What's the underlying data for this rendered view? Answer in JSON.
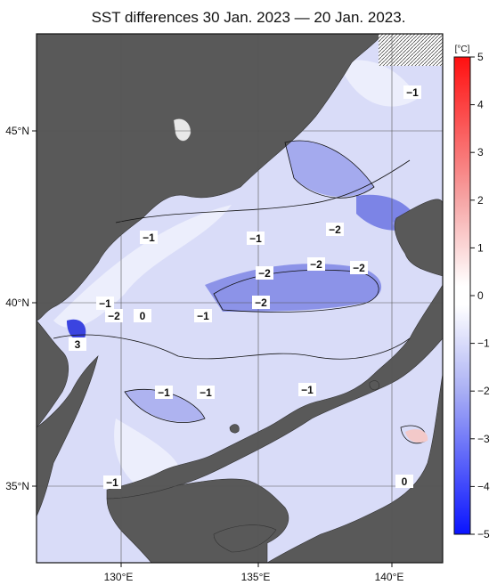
{
  "title": "SST differences 30 Jan. 2023 — 20 Jan. 2023.",
  "unit": "[°C]",
  "colorbar": {
    "ticks": [
      "5",
      "4",
      "3",
      "2",
      "1",
      "0",
      "−1",
      "−2",
      "−3",
      "−4",
      "−5"
    ],
    "min": -5,
    "max": 5,
    "negative_color": "#0a1cff",
    "positive_color": "#ff1a1a"
  },
  "axes": {
    "lon_labels": [
      "130°E",
      "135°E",
      "140°E"
    ],
    "lat_labels": [
      "45°N",
      "40°N",
      "35°N"
    ]
  },
  "contour_labels": [
    {
      "text": "−1"
    },
    {
      "text": "−1"
    },
    {
      "text": "−2"
    },
    {
      "text": "−1"
    },
    {
      "text": "−2"
    },
    {
      "text": "−2"
    },
    {
      "text": "−2"
    },
    {
      "text": "−2"
    },
    {
      "text": "−1"
    },
    {
      "text": "−2"
    },
    {
      "text": "0"
    },
    {
      "text": "−1"
    },
    {
      "text": "3"
    },
    {
      "text": "−1"
    },
    {
      "text": "−1"
    },
    {
      "text": "−1"
    },
    {
      "text": "−1"
    },
    {
      "text": "0"
    }
  ],
  "colors": {
    "land": "#595959",
    "sea_base": "#d4d8f8",
    "missing": "#ffffff"
  }
}
